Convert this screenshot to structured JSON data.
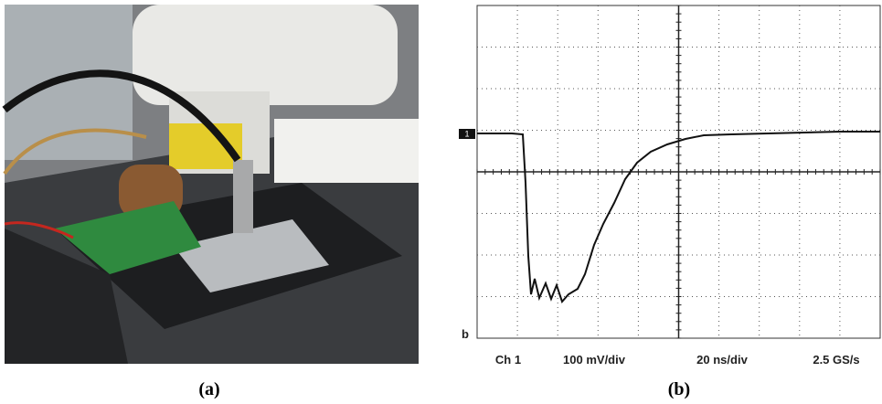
{
  "panel_a": {
    "caption": "(a)"
  },
  "panel_b": {
    "caption": "(b)",
    "trace_label": "b",
    "channel_marker": "1",
    "readouts": [
      "Ch 1",
      "100 mV/div",
      "20 ns/div",
      "2.5 GS/s"
    ]
  }
}
